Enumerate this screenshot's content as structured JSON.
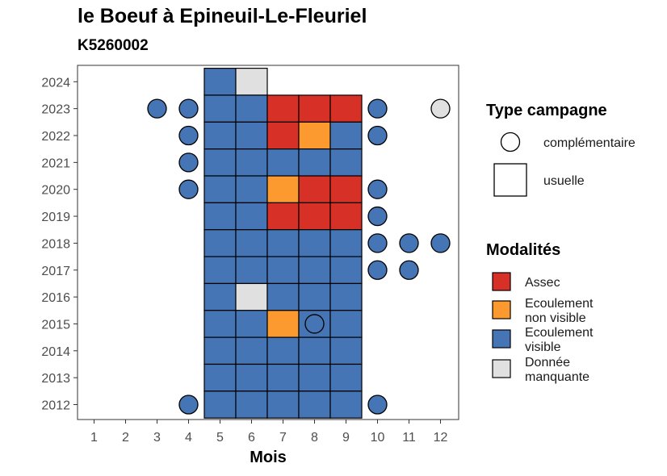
{
  "chart_data": {
    "type": "heatmap",
    "title": "le Boeuf à Epineuil-Le-Fleuriel",
    "subtitle": "K5260002",
    "xlabel": "Mois",
    "ylabel": "",
    "x_ticks": [
      "1",
      "2",
      "3",
      "4",
      "5",
      "6",
      "7",
      "8",
      "9",
      "10",
      "11",
      "12"
    ],
    "y_ticks": [
      "2012",
      "2013",
      "2014",
      "2015",
      "2016",
      "2017",
      "2018",
      "2019",
      "2020",
      "2021",
      "2022",
      "2023",
      "2024"
    ],
    "colors": {
      "Assec": "#d73027",
      "Ecoulement non visible": "#fd9a2f",
      "Ecoulement visible": "#4575b4",
      "Donnée manquante": "#e0e0e0"
    },
    "campaign_types": [
      "complémentaire",
      "usuelle"
    ],
    "usuelle": [
      {
        "year": 2024,
        "month": 5,
        "modalite": "Ecoulement visible"
      },
      {
        "year": 2024,
        "month": 6,
        "modalite": "Donnée manquante"
      },
      {
        "year": 2023,
        "month": 5,
        "modalite": "Ecoulement visible"
      },
      {
        "year": 2023,
        "month": 6,
        "modalite": "Ecoulement visible"
      },
      {
        "year": 2023,
        "month": 7,
        "modalite": "Assec"
      },
      {
        "year": 2023,
        "month": 8,
        "modalite": "Assec"
      },
      {
        "year": 2023,
        "month": 9,
        "modalite": "Assec"
      },
      {
        "year": 2022,
        "month": 5,
        "modalite": "Ecoulement visible"
      },
      {
        "year": 2022,
        "month": 6,
        "modalite": "Ecoulement visible"
      },
      {
        "year": 2022,
        "month": 7,
        "modalite": "Assec"
      },
      {
        "year": 2022,
        "month": 8,
        "modalite": "Ecoulement non visible"
      },
      {
        "year": 2022,
        "month": 9,
        "modalite": "Ecoulement visible"
      },
      {
        "year": 2021,
        "month": 5,
        "modalite": "Ecoulement visible"
      },
      {
        "year": 2021,
        "month": 6,
        "modalite": "Ecoulement visible"
      },
      {
        "year": 2021,
        "month": 7,
        "modalite": "Ecoulement visible"
      },
      {
        "year": 2021,
        "month": 8,
        "modalite": "Ecoulement visible"
      },
      {
        "year": 2021,
        "month": 9,
        "modalite": "Ecoulement visible"
      },
      {
        "year": 2020,
        "month": 5,
        "modalite": "Ecoulement visible"
      },
      {
        "year": 2020,
        "month": 6,
        "modalite": "Ecoulement visible"
      },
      {
        "year": 2020,
        "month": 7,
        "modalite": "Ecoulement non visible"
      },
      {
        "year": 2020,
        "month": 8,
        "modalite": "Assec"
      },
      {
        "year": 2020,
        "month": 9,
        "modalite": "Assec"
      },
      {
        "year": 2019,
        "month": 5,
        "modalite": "Ecoulement visible"
      },
      {
        "year": 2019,
        "month": 6,
        "modalite": "Ecoulement visible"
      },
      {
        "year": 2019,
        "month": 7,
        "modalite": "Assec"
      },
      {
        "year": 2019,
        "month": 8,
        "modalite": "Assec"
      },
      {
        "year": 2019,
        "month": 9,
        "modalite": "Assec"
      },
      {
        "year": 2018,
        "month": 5,
        "modalite": "Ecoulement visible"
      },
      {
        "year": 2018,
        "month": 6,
        "modalite": "Ecoulement visible"
      },
      {
        "year": 2018,
        "month": 7,
        "modalite": "Ecoulement visible"
      },
      {
        "year": 2018,
        "month": 8,
        "modalite": "Ecoulement visible"
      },
      {
        "year": 2018,
        "month": 9,
        "modalite": "Ecoulement visible"
      },
      {
        "year": 2017,
        "month": 5,
        "modalite": "Ecoulement visible"
      },
      {
        "year": 2017,
        "month": 6,
        "modalite": "Ecoulement visible"
      },
      {
        "year": 2017,
        "month": 7,
        "modalite": "Ecoulement visible"
      },
      {
        "year": 2017,
        "month": 8,
        "modalite": "Ecoulement visible"
      },
      {
        "year": 2017,
        "month": 9,
        "modalite": "Ecoulement visible"
      },
      {
        "year": 2016,
        "month": 5,
        "modalite": "Ecoulement visible"
      },
      {
        "year": 2016,
        "month": 6,
        "modalite": "Donnée manquante"
      },
      {
        "year": 2016,
        "month": 7,
        "modalite": "Ecoulement visible"
      },
      {
        "year": 2016,
        "month": 8,
        "modalite": "Ecoulement visible"
      },
      {
        "year": 2016,
        "month": 9,
        "modalite": "Ecoulement visible"
      },
      {
        "year": 2015,
        "month": 5,
        "modalite": "Ecoulement visible"
      },
      {
        "year": 2015,
        "month": 6,
        "modalite": "Ecoulement visible"
      },
      {
        "year": 2015,
        "month": 7,
        "modalite": "Ecoulement non visible"
      },
      {
        "year": 2015,
        "month": 8,
        "modalite": "Ecoulement visible"
      },
      {
        "year": 2015,
        "month": 9,
        "modalite": "Ecoulement visible"
      },
      {
        "year": 2014,
        "month": 5,
        "modalite": "Ecoulement visible"
      },
      {
        "year": 2014,
        "month": 6,
        "modalite": "Ecoulement visible"
      },
      {
        "year": 2014,
        "month": 7,
        "modalite": "Ecoulement visible"
      },
      {
        "year": 2014,
        "month": 8,
        "modalite": "Ecoulement visible"
      },
      {
        "year": 2014,
        "month": 9,
        "modalite": "Ecoulement visible"
      },
      {
        "year": 2013,
        "month": 5,
        "modalite": "Ecoulement visible"
      },
      {
        "year": 2013,
        "month": 6,
        "modalite": "Ecoulement visible"
      },
      {
        "year": 2013,
        "month": 7,
        "modalite": "Ecoulement visible"
      },
      {
        "year": 2013,
        "month": 8,
        "modalite": "Ecoulement visible"
      },
      {
        "year": 2013,
        "month": 9,
        "modalite": "Ecoulement visible"
      },
      {
        "year": 2012,
        "month": 5,
        "modalite": "Ecoulement visible"
      },
      {
        "year": 2012,
        "month": 6,
        "modalite": "Ecoulement visible"
      },
      {
        "year": 2012,
        "month": 7,
        "modalite": "Ecoulement visible"
      },
      {
        "year": 2012,
        "month": 8,
        "modalite": "Ecoulement visible"
      },
      {
        "year": 2012,
        "month": 9,
        "modalite": "Ecoulement visible"
      }
    ],
    "complementaire": [
      {
        "year": 2023,
        "month": 3,
        "modalite": "Ecoulement visible"
      },
      {
        "year": 2023,
        "month": 4,
        "modalite": "Ecoulement visible"
      },
      {
        "year": 2023,
        "month": 10,
        "modalite": "Ecoulement visible"
      },
      {
        "year": 2023,
        "month": 12,
        "modalite": "Donnée manquante"
      },
      {
        "year": 2022,
        "month": 4,
        "modalite": "Ecoulement visible"
      },
      {
        "year": 2022,
        "month": 10,
        "modalite": "Ecoulement visible"
      },
      {
        "year": 2021,
        "month": 4,
        "modalite": "Ecoulement visible"
      },
      {
        "year": 2020,
        "month": 4,
        "modalite": "Ecoulement visible"
      },
      {
        "year": 2020,
        "month": 10,
        "modalite": "Ecoulement visible"
      },
      {
        "year": 2019,
        "month": 10,
        "modalite": "Ecoulement visible"
      },
      {
        "year": 2018,
        "month": 10,
        "modalite": "Ecoulement visible"
      },
      {
        "year": 2018,
        "month": 11,
        "modalite": "Ecoulement visible"
      },
      {
        "year": 2018,
        "month": 12,
        "modalite": "Ecoulement visible"
      },
      {
        "year": 2017,
        "month": 10,
        "modalite": "Ecoulement visible"
      },
      {
        "year": 2017,
        "month": 11,
        "modalite": "Ecoulement visible"
      },
      {
        "year": 2015,
        "month": 8,
        "modalite": "Ecoulement visible"
      },
      {
        "year": 2012,
        "month": 4,
        "modalite": "Ecoulement visible"
      },
      {
        "year": 2012,
        "month": 10,
        "modalite": "Ecoulement visible"
      }
    ],
    "legend": {
      "type_title": "Type campagne",
      "type_items": [
        {
          "label": "complémentaire",
          "shape": "circle"
        },
        {
          "label": "usuelle",
          "shape": "square"
        }
      ],
      "modalite_title": "Modalités",
      "modalite_items": [
        {
          "key": "Assec",
          "lines": [
            "Assec"
          ]
        },
        {
          "key": "Ecoulement non visible",
          "lines": [
            "Ecoulement",
            "non visible"
          ]
        },
        {
          "key": "Ecoulement visible",
          "lines": [
            "Ecoulement",
            "visible"
          ]
        },
        {
          "key": "Donnée manquante",
          "lines": [
            "Donnée",
            "manquante"
          ]
        }
      ]
    }
  }
}
